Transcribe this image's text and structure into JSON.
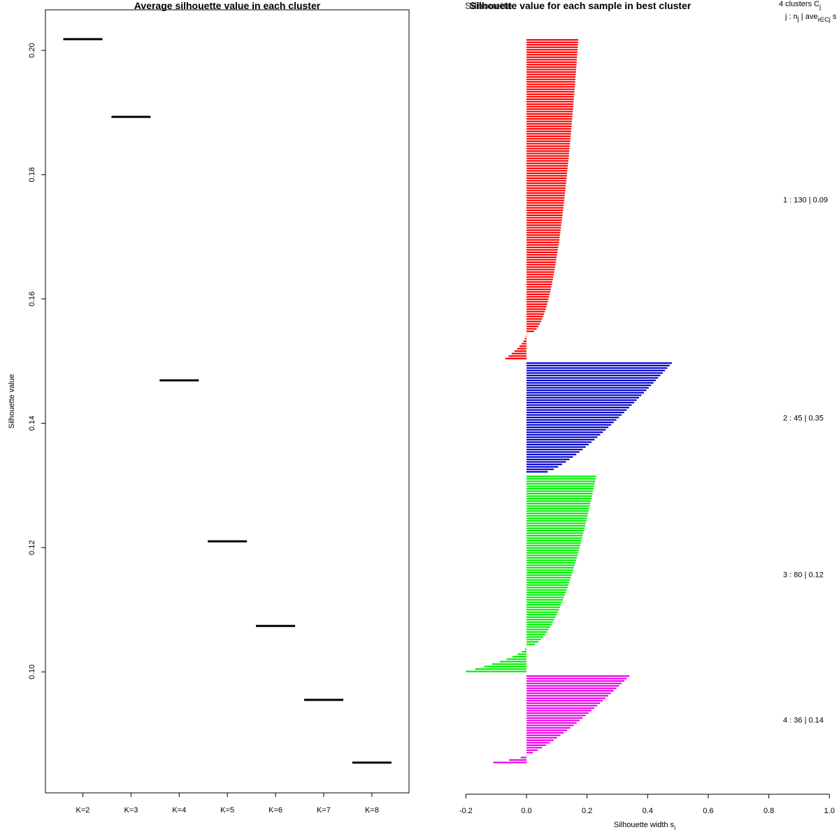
{
  "chart_data": [
    {
      "type": "line",
      "title": "Average silhouette value in each cluster",
      "xlabel": "",
      "ylabel": "Silhouette value",
      "categories": [
        "K=2",
        "K=3",
        "K=4",
        "K=5",
        "K=6",
        "K=7",
        "K=8"
      ],
      "values": [
        0.2018,
        0.1893,
        0.1469,
        0.121,
        0.1074,
        0.0955,
        0.0854
      ],
      "ylim": [
        0.08,
        0.206
      ],
      "yticks": [
        "0.10",
        "0.12",
        "0.14",
        "0.16",
        "0.18",
        "0.20"
      ],
      "ytick_values": [
        0.1,
        0.12,
        0.14,
        0.16,
        0.18,
        0.2
      ],
      "mark": "horizontal segment per K",
      "color": "#000000",
      "grid": false
    },
    {
      "type": "bar",
      "orientation": "horizontal",
      "title": "Silhouette value for each sample in best cluster",
      "title_overlap": "Silhouette",
      "xlabel": "Silhouette width s",
      "xlabel_sub": "i",
      "ylabel": "",
      "xlim": [
        -0.2,
        1.0
      ],
      "xticks": [
        "-0.2",
        "0.0",
        "0.2",
        "0.4",
        "0.6",
        "0.8",
        "1.0"
      ],
      "xtick_values": [
        -0.2,
        0.0,
        0.2,
        0.4,
        0.6,
        0.8,
        1.0
      ],
      "header_line1": "4  clusters  C",
      "header_line1_sub": "j",
      "header_line2": "j :  n",
      "header_line2_sub": "j",
      "header_line2_rest": " | ave",
      "header_line2_sub2": "i∈Cj",
      "header_line2_tail": "  s",
      "clusters": [
        {
          "id": 1,
          "n": 130,
          "color": "#ff0000",
          "label_prefix": "1 :   130  |  0.09",
          "start": 0.171,
          "end": 0.0,
          "n_negative": 10,
          "neg_min": -0.07,
          "power": 0.4
        },
        {
          "id": 2,
          "n": 45,
          "color": "#0000c8",
          "label_prefix": "2 :   45  |  0.35",
          "start": 0.48,
          "end": 0.07,
          "n_negative": 0,
          "neg_min": 0,
          "power": 0.8
        },
        {
          "id": 3,
          "n": 80,
          "color": "#00ee00",
          "label_prefix": "3 :   80  |  0.12",
          "start": 0.23,
          "end": 0.0,
          "n_negative": 10,
          "neg_min": -0.2,
          "power": 0.5
        },
        {
          "id": 4,
          "n": 36,
          "color": "#ee00ee",
          "label_prefix": "4 :   36  |  0.14",
          "start": 0.34,
          "end": 0.0,
          "n_negative": 3,
          "neg_min": -0.11,
          "power": 0.8
        }
      ],
      "grid": false
    }
  ]
}
